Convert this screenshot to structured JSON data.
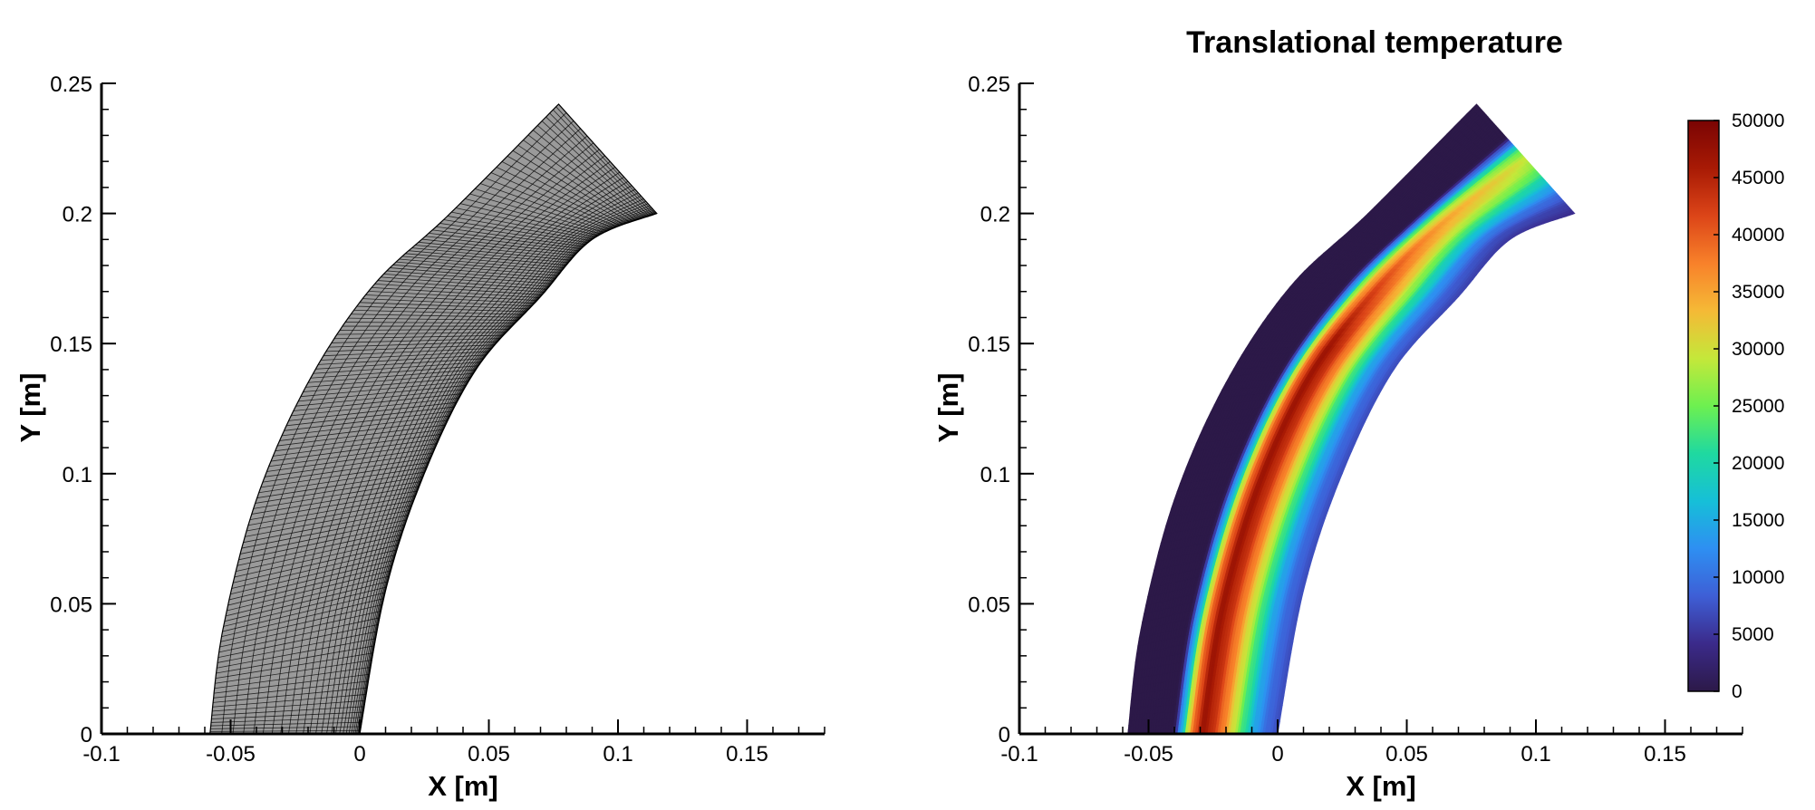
{
  "chart_data": [
    {
      "type": "mesh",
      "title": "",
      "xlabel": "X [m]",
      "ylabel": "Y [m]",
      "xlim": [
        -0.1,
        0.18
      ],
      "ylim": [
        0,
        0.25
      ],
      "x_ticks": [
        -0.1,
        -0.05,
        0,
        0.05,
        0.1,
        0.15
      ],
      "x_tick_labels": [
        "-0.1",
        "-0.05",
        "0",
        "0.05",
        "0.1",
        "0.15"
      ],
      "y_ticks": [
        0,
        0.05,
        0.1,
        0.15,
        0.2,
        0.25
      ],
      "y_tick_labels": [
        "0",
        "0.05",
        "0.1",
        "0.15",
        "0.2",
        "0.25"
      ],
      "domain": {
        "inner_boundary": [
          [
            0,
            0
          ],
          [
            0.01,
            0.055
          ],
          [
            0.025,
            0.1
          ],
          [
            0.045,
            0.14
          ],
          [
            0.07,
            0.168
          ],
          [
            0.09,
            0.19
          ],
          [
            0.115,
            0.2
          ]
        ],
        "outer_boundary": [
          [
            -0.058,
            0
          ],
          [
            -0.053,
            0.04
          ],
          [
            -0.04,
            0.09
          ],
          [
            -0.02,
            0.135
          ],
          [
            0.005,
            0.172
          ],
          [
            0.035,
            0.2
          ],
          [
            0.077,
            0.242
          ]
        ],
        "far_edge": [
          [
            0.077,
            0.242
          ],
          [
            0.115,
            0.2
          ]
        ]
      },
      "mesh_color": "#000000",
      "mesh_fill": "#9a9a9a"
    },
    {
      "type": "contour",
      "title": "Translational temperature",
      "xlabel": "X [m]",
      "ylabel": "Y [m]",
      "xlim": [
        -0.1,
        0.18
      ],
      "ylim": [
        0,
        0.25
      ],
      "x_ticks": [
        -0.1,
        -0.05,
        0,
        0.05,
        0.1,
        0.15
      ],
      "x_tick_labels": [
        "-0.1",
        "-0.05",
        "0",
        "0.05",
        "0.1",
        "0.15"
      ],
      "y_ticks": [
        0,
        0.05,
        0.1,
        0.15,
        0.2,
        0.25
      ],
      "y_tick_labels": [
        "0",
        "0.05",
        "0.1",
        "0.15",
        "0.2",
        "0.25"
      ],
      "colorbar": {
        "min": 0,
        "max": 50000,
        "ticks": [
          0,
          5000,
          10000,
          15000,
          20000,
          25000,
          30000,
          35000,
          40000,
          45000,
          50000
        ],
        "tick_labels": [
          "0",
          "5000",
          "10000",
          "15000",
          "20000",
          "25000",
          "30000",
          "35000",
          "40000",
          "45000",
          "50000"
        ],
        "colors": [
          "#2c1948",
          "#3b2a8a",
          "#3e5fd6",
          "#2e8ff2",
          "#16bfd8",
          "#1fd9a0",
          "#6df050",
          "#c4e83a",
          "#f5b936",
          "#f8812a",
          "#dc4518",
          "#a81a05",
          "#7a0403"
        ]
      },
      "temperature_profile": {
        "normalized_position_outer_to_inner": [
          0,
          0.3,
          0.36,
          0.4,
          0.44,
          0.5,
          0.56,
          0.63,
          0.7,
          0.77,
          0.85,
          0.93,
          1
        ],
        "temperature": [
          0,
          0,
          15000,
          30000,
          40000,
          47000,
          44000,
          38000,
          30000,
          22000,
          14000,
          9000,
          7000
        ],
        "far_edge_temperature_scale": 0.62
      }
    }
  ]
}
